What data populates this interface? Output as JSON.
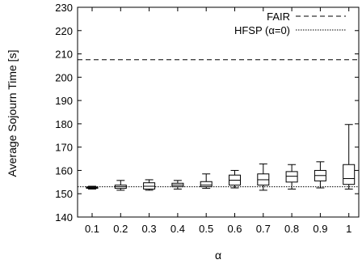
{
  "chart_data": {
    "type": "boxplot",
    "title": "",
    "xlabel": "α",
    "ylabel": "Average Sojourn Time [s]",
    "categories": [
      "0.1",
      "0.2",
      "0.3",
      "0.4",
      "0.5",
      "0.6",
      "0.7",
      "0.8",
      "0.9",
      "1"
    ],
    "ylim": [
      140,
      230
    ],
    "yticks": [
      "140",
      "150",
      "160",
      "170",
      "180",
      "190",
      "200",
      "210",
      "220",
      "230"
    ],
    "grid": false,
    "legend_position": "top-right",
    "boxes": [
      {
        "x": "0.1",
        "min": 152.0,
        "q1": 152.3,
        "median": 152.6,
        "q3": 152.9,
        "max": 153.2
      },
      {
        "x": "0.2",
        "min": 151.5,
        "q1": 152.3,
        "median": 153.0,
        "q3": 153.7,
        "max": 155.7
      },
      {
        "x": "0.3",
        "min": 151.5,
        "q1": 152.0,
        "median": 153.2,
        "q3": 154.7,
        "max": 156.0
      },
      {
        "x": "0.4",
        "min": 152.0,
        "q1": 153.0,
        "median": 153.7,
        "q3": 154.5,
        "max": 155.7
      },
      {
        "x": "0.5",
        "min": 152.3,
        "q1": 153.0,
        "median": 153.7,
        "q3": 155.2,
        "max": 158.5
      },
      {
        "x": "0.6",
        "min": 152.5,
        "q1": 153.7,
        "median": 155.8,
        "q3": 158.0,
        "max": 160.0
      },
      {
        "x": "0.7",
        "min": 151.5,
        "q1": 153.7,
        "median": 156.0,
        "q3": 158.5,
        "max": 162.8
      },
      {
        "x": "0.8",
        "min": 152.0,
        "q1": 155.0,
        "median": 157.5,
        "q3": 159.5,
        "max": 162.5
      },
      {
        "x": "0.9",
        "min": 152.5,
        "q1": 155.5,
        "median": 157.8,
        "q3": 160.0,
        "max": 163.7
      },
      {
        "x": "1",
        "min": 152.0,
        "q1": 154.0,
        "median": 156.5,
        "q3": 162.5,
        "max": 179.7
      }
    ],
    "reference_lines": [
      {
        "name": "FAIR",
        "value": 207.5,
        "style": "dashed"
      },
      {
        "name": "HFSP (α=0)",
        "value": 153.0,
        "style": "dotted"
      }
    ]
  }
}
